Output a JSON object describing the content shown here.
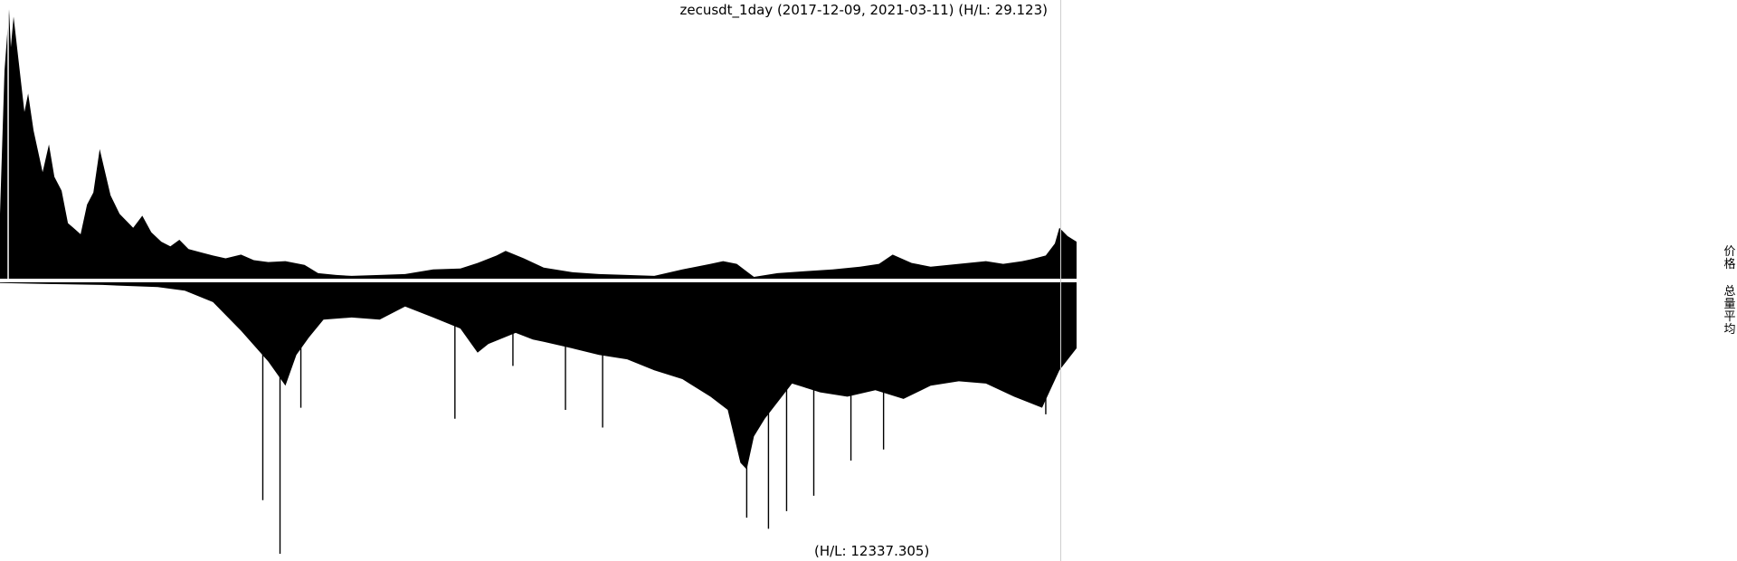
{
  "chart_data": {
    "type": "area",
    "title": "zecusdt_1day (2017-12-09, 2021-03-11) (H/L: 29.123)",
    "volume_label": "(H/L: 12337.305)",
    "legend": [
      "价格",
      "总量平均"
    ],
    "x_range": [
      "2017-12-09",
      "2021-03-11"
    ],
    "colors": {
      "fill": "#000000",
      "separator": "#ffffff",
      "divider": "#cfcfcf"
    },
    "price_series": {
      "name": "价格",
      "x": [
        "2017-12-09",
        "2017-12-14",
        "2017-12-19",
        "2017-12-21",
        "2017-12-24",
        "2018-01-05",
        "2018-01-09",
        "2018-01-15",
        "2018-01-25",
        "2018-02-01",
        "2018-02-07",
        "2018-02-15",
        "2018-02-22",
        "2018-02-28",
        "2018-03-08",
        "2018-03-15",
        "2018-03-22",
        "2018-03-29",
        "2018-04-10",
        "2018-04-20",
        "2018-04-30",
        "2018-05-05",
        "2018-05-15",
        "2018-05-25",
        "2018-06-05",
        "2018-06-15",
        "2018-06-25",
        "2018-07-05",
        "2018-07-20",
        "2018-08-01",
        "2018-08-15",
        "2018-09-01",
        "2018-09-15",
        "2018-10-01",
        "2018-10-20",
        "2018-11-10",
        "2018-11-15",
        "2018-11-25",
        "2018-12-15",
        "2019-01-01",
        "2019-02-01",
        "2019-03-01",
        "2019-04-01",
        "2019-05-01",
        "2019-05-20",
        "2019-06-10",
        "2019-06-20",
        "2019-07-10",
        "2019-08-01",
        "2019-09-01",
        "2019-10-01",
        "2019-11-01",
        "2019-12-01",
        "2020-01-01",
        "2020-02-01",
        "2020-02-15",
        "2020-03-01",
        "2020-03-13",
        "2020-03-20",
        "2020-04-15",
        "2020-05-15",
        "2020-06-15",
        "2020-07-15",
        "2020-08-05",
        "2020-08-20",
        "2020-09-10",
        "2020-10-01",
        "2020-11-01",
        "2020-12-01",
        "2020-12-20",
        "2021-01-10",
        "2021-01-20",
        "2021-02-05",
        "2021-02-15",
        "2021-02-20",
        "2021-03-01",
        "2021-03-11"
      ],
      "y": [
        7.0,
        22.5,
        29.1,
        25.0,
        28.3,
        18.0,
        20.0,
        16.0,
        11.5,
        14.5,
        11.0,
        9.5,
        6.0,
        5.5,
        4.8,
        8.0,
        9.3,
        14.0,
        9.0,
        7.0,
        6.0,
        5.5,
        6.8,
        5.0,
        4.0,
        3.5,
        4.2,
        3.2,
        2.8,
        2.5,
        2.2,
        2.6,
        2.0,
        1.8,
        1.9,
        1.5,
        1.2,
        0.6,
        0.4,
        0.3,
        0.4,
        0.5,
        1.0,
        1.1,
        1.7,
        2.5,
        3.0,
        2.2,
        1.2,
        0.7,
        0.5,
        0.4,
        0.3,
        1.0,
        1.6,
        1.9,
        1.6,
        0.7,
        0.2,
        0.6,
        0.8,
        1.0,
        1.3,
        1.6,
        2.6,
        1.7,
        1.3,
        1.6,
        1.9,
        1.6,
        1.9,
        2.1,
        2.5,
        3.8,
        5.5,
        4.6,
        4.0
      ],
      "ylim": [
        0,
        29.123
      ]
    },
    "volume_series": {
      "name": "总量平均",
      "x": [
        "2017-12-09",
        "2018-02-01",
        "2018-04-01",
        "2018-06-01",
        "2018-07-01",
        "2018-08-01",
        "2018-09-01",
        "2018-10-01",
        "2018-10-20",
        "2018-11-01",
        "2018-11-15",
        "2018-12-01",
        "2019-01-01",
        "2019-02-01",
        "2019-03-01",
        "2019-04-01",
        "2019-05-01",
        "2019-05-20",
        "2019-06-01",
        "2019-07-01",
        "2019-07-20",
        "2019-08-01",
        "2019-09-01",
        "2019-10-01",
        "2019-11-01",
        "2019-12-01",
        "2020-01-01",
        "2020-02-01",
        "2020-02-20",
        "2020-03-05",
        "2020-03-12",
        "2020-03-20",
        "2020-04-01",
        "2020-05-01",
        "2020-06-01",
        "2020-07-01",
        "2020-08-01",
        "2020-09-01",
        "2020-10-01",
        "2020-11-01",
        "2020-12-01",
        "2021-01-01",
        "2021-02-01",
        "2021-02-20",
        "2021-03-11"
      ],
      "y": [
        30,
        80,
        120,
        220,
        380,
        900,
        2200,
        3600,
        4700,
        3300,
        2500,
        1700,
        1600,
        1700,
        1100,
        1600,
        2100,
        3200,
        2800,
        2300,
        2600,
        2700,
        3000,
        3300,
        3500,
        4000,
        4400,
        5200,
        5800,
        8200,
        8500,
        7000,
        6200,
        4600,
        5000,
        5200,
        4900,
        5300,
        4700,
        4500,
        4600,
        5200,
        5700,
        4000,
        3000
      ],
      "spikes": [
        {
          "x": "2018-09-25",
          "y": 9900
        },
        {
          "x": "2018-10-14",
          "y": 12337.305
        },
        {
          "x": "2018-11-06",
          "y": 5700
        },
        {
          "x": "2019-04-25",
          "y": 6200
        },
        {
          "x": "2019-06-28",
          "y": 3800
        },
        {
          "x": "2019-08-25",
          "y": 5800
        },
        {
          "x": "2019-10-05",
          "y": 6600
        },
        {
          "x": "2020-03-12",
          "y": 10700
        },
        {
          "x": "2020-04-05",
          "y": 11200
        },
        {
          "x": "2020-04-25",
          "y": 10400
        },
        {
          "x": "2020-05-25",
          "y": 9700
        },
        {
          "x": "2020-07-05",
          "y": 8100
        },
        {
          "x": "2020-08-10",
          "y": 7600
        },
        {
          "x": "2021-02-05",
          "y": 6000
        }
      ],
      "ylim": [
        0,
        12337.305
      ]
    }
  }
}
